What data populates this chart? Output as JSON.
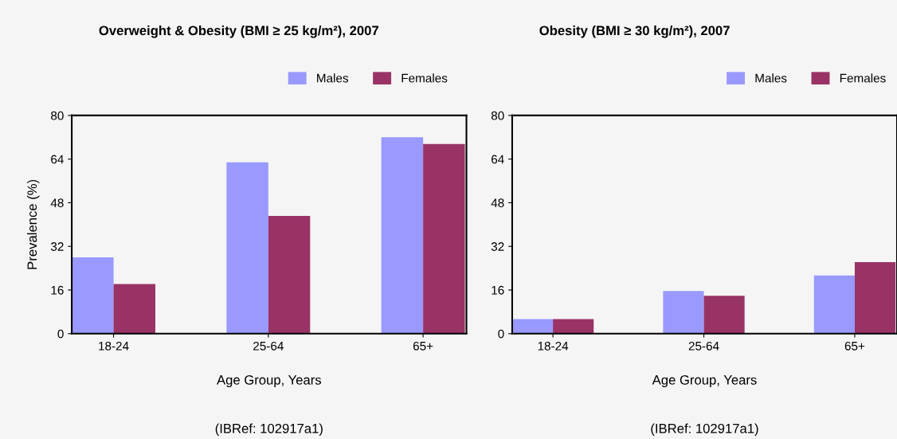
{
  "chart_data": [
    {
      "type": "bar",
      "title": "Overweight & Obesity (BMI ≥ 25 kg/m²), 2007",
      "xlabel": "Age Group, Years",
      "ylabel": "Prevalence (%)",
      "annotations": [
        "(IBRef: 102917a1)"
      ],
      "categories": [
        "18-24",
        "25-64",
        "65+"
      ],
      "series": [
        {
          "name": "Males",
          "color": "#9999ff",
          "values": [
            28.0,
            62.8,
            72.0
          ]
        },
        {
          "name": "Females",
          "color": "#993366",
          "values": [
            18.2,
            43.2,
            69.5
          ]
        }
      ],
      "ylim": [
        0,
        80
      ],
      "yticks": [
        0,
        16,
        32,
        48,
        64,
        80
      ],
      "legend": "top right",
      "grid": false
    },
    {
      "type": "bar",
      "title": "Obesity (BMI ≥ 30 kg/m²), 2007",
      "xlabel": "Age Group, Years",
      "annotations": [
        "(IBRef: 102917a1)"
      ],
      "categories": [
        "18-24",
        "25-64",
        "65+"
      ],
      "series": [
        {
          "name": "Males",
          "color": "#9999ff",
          "values": [
            5.3,
            15.6,
            21.3
          ]
        },
        {
          "name": "Females",
          "color": "#993366",
          "values": [
            5.3,
            13.9,
            26.2
          ]
        }
      ],
      "ylim": [
        0,
        80
      ],
      "yticks": [
        0,
        16,
        32,
        48,
        64,
        80
      ],
      "legend": "top right",
      "grid": false
    }
  ]
}
